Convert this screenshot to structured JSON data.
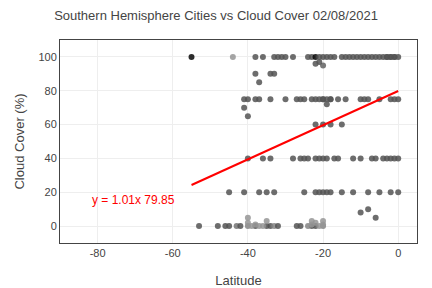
{
  "chart_data": {
    "type": "scatter",
    "title": "Southern Hemisphere Cities vs Cloud Cover 02/08/2021",
    "xlabel": "Latitude",
    "ylabel": "Cloud Cover (%)",
    "xlim": [
      -90,
      5
    ],
    "ylim": [
      -10,
      110
    ],
    "xticks": [
      -80,
      -60,
      -40,
      -20,
      0
    ],
    "yticks": [
      0,
      20,
      40,
      60,
      80,
      100
    ],
    "grid": true,
    "series": [
      {
        "type": "scatter",
        "x": [
          -55,
          -44,
          -45,
          -45,
          -43,
          -42,
          -41,
          -41,
          -41,
          -40,
          -40,
          -40,
          -40,
          -38,
          -38,
          -38,
          -38,
          -37,
          -37,
          -36,
          -36,
          -35,
          -34,
          -34,
          -34,
          -33,
          -33,
          -33,
          -32,
          -32,
          -31,
          -30,
          -28,
          -27,
          -27,
          -26,
          -26,
          -25,
          -25,
          -24,
          -24,
          -23,
          -23,
          -23,
          -22,
          -22,
          -22,
          -22,
          -22,
          -21,
          -21,
          -21,
          -21,
          -20,
          -20,
          -20,
          -20,
          -20,
          -19,
          -19,
          -19,
          -19,
          -18,
          -18,
          -18,
          -17,
          -17,
          -16,
          -16,
          -15,
          -15,
          -14,
          -14,
          -13,
          -12,
          -12,
          -11,
          -10,
          -10,
          -10,
          -9,
          -9,
          -8,
          -8,
          -7,
          -7,
          -6,
          -6,
          -5,
          -5,
          -4,
          -4,
          -3,
          -3,
          -2,
          -2,
          -2,
          -1,
          -1,
          -1,
          0,
          0,
          0,
          0,
          -53,
          -48,
          -46,
          -34,
          -30,
          -28,
          -26,
          -24,
          -22,
          -20,
          -18,
          -15,
          -12,
          -8,
          -5,
          -2,
          -33,
          -35,
          -37,
          -25,
          -40,
          -40,
          -39,
          -38,
          -37,
          -36,
          -35,
          -23,
          -23,
          -22,
          -21,
          -20,
          -20,
          -1,
          -2,
          -3,
          -20,
          -21,
          -22,
          -20,
          -19,
          -18,
          -10,
          -8,
          -6
        ],
        "values": [
          100,
          100,
          20,
          0,
          0,
          0,
          75,
          70,
          20,
          75,
          65,
          40,
          0,
          100,
          90,
          75,
          0,
          85,
          75,
          100,
          40,
          0,
          90,
          75,
          0,
          100,
          90,
          0,
          100,
          0,
          100,
          100,
          100,
          75,
          0,
          75,
          0,
          75,
          20,
          100,
          40,
          100,
          75,
          0,
          100,
          75,
          40,
          20,
          0,
          100,
          75,
          40,
          20,
          100,
          75,
          40,
          20,
          0,
          100,
          75,
          40,
          20,
          100,
          75,
          20,
          100,
          40,
          75,
          40,
          100,
          20,
          100,
          75,
          100,
          100,
          40,
          100,
          100,
          75,
          40,
          100,
          75,
          100,
          75,
          100,
          40,
          100,
          40,
          100,
          75,
          100,
          40,
          100,
          40,
          100,
          75,
          40,
          100,
          75,
          40,
          100,
          75,
          40,
          20,
          0,
          0,
          0,
          40,
          75,
          40,
          40,
          0,
          60,
          60,
          60,
          60,
          20,
          20,
          20,
          20,
          20,
          20,
          20,
          40,
          5,
          2,
          0,
          1,
          0,
          0,
          3,
          1,
          3,
          2,
          0,
          1,
          3,
          100,
          100,
          100,
          95,
          97,
          96,
          75,
          72,
          75,
          8,
          10,
          5
        ],
        "colors": [
          "#080808",
          "#959595",
          "#535353",
          "#535353",
          "#747474",
          "#535353",
          "#535353",
          "#535353",
          "#535353",
          "#535353",
          "#535353",
          "#535353",
          "#858585",
          "#535353",
          "#535353",
          "#535353",
          "#535353",
          "#535353",
          "#535353",
          "#535353",
          "#535353",
          "#535353",
          "#535353",
          "#535353",
          "#535353",
          "#535353",
          "#535353",
          "#858585",
          "#535353",
          "#535353",
          "#535353",
          "#535353",
          "#535353",
          "#535353",
          "#535353",
          "#535353",
          "#535353",
          "#535353",
          "#535353",
          "#535353",
          "#535353",
          "#535353",
          "#535353",
          "#535353",
          "#080808",
          "#535353",
          "#535353",
          "#535353",
          "#535353",
          "#535353",
          "#535353",
          "#535353",
          "#535353",
          "#535353",
          "#535353",
          "#535353",
          "#535353",
          "#858585",
          "#535353",
          "#535353",
          "#535353",
          "#535353",
          "#535353",
          "#535353",
          "#535353",
          "#535353",
          "#535353",
          "#535353",
          "#535353",
          "#535353",
          "#535353",
          "#535353",
          "#535353",
          "#535353",
          "#535353",
          "#535353",
          "#535353",
          "#535353",
          "#535353",
          "#535353",
          "#535353",
          "#535353",
          "#535353",
          "#535353",
          "#535353",
          "#535353",
          "#535353",
          "#535353",
          "#535353",
          "#535353",
          "#535353",
          "#535353",
          "#535353",
          "#535353",
          "#535353",
          "#535353",
          "#535353",
          "#535353",
          "#535353",
          "#535353",
          "#535353",
          "#535353",
          "#535353",
          "#535353",
          "#535353",
          "#535353",
          "#535353",
          "#535353",
          "#535353",
          "#535353",
          "#535353",
          "#858585",
          "#535353",
          "#535353",
          "#535353",
          "#535353",
          "#535353",
          "#535353",
          "#535353",
          "#535353",
          "#535353",
          "#535353",
          "#535353",
          "#535353",
          "#959595",
          "#959595",
          "#959595",
          "#959595",
          "#959595",
          "#959595",
          "#959595",
          "#959595",
          "#959595",
          "#959595",
          "#959595",
          "#959595",
          "#959595",
          "#535353",
          "#535353",
          "#535353",
          "#636363",
          "#535353",
          "#535353",
          "#535353",
          "#535353",
          "#535353",
          "#535353",
          "#535353",
          "#535353"
        ]
      },
      {
        "type": "line",
        "x": [
          -55,
          0
        ],
        "values": [
          24.3,
          79.85
        ],
        "color": "red"
      }
    ],
    "annotations": [
      {
        "text": "y = 1.01x 79.85",
        "x": -82,
        "y": 10,
        "color": "red"
      }
    ]
  }
}
